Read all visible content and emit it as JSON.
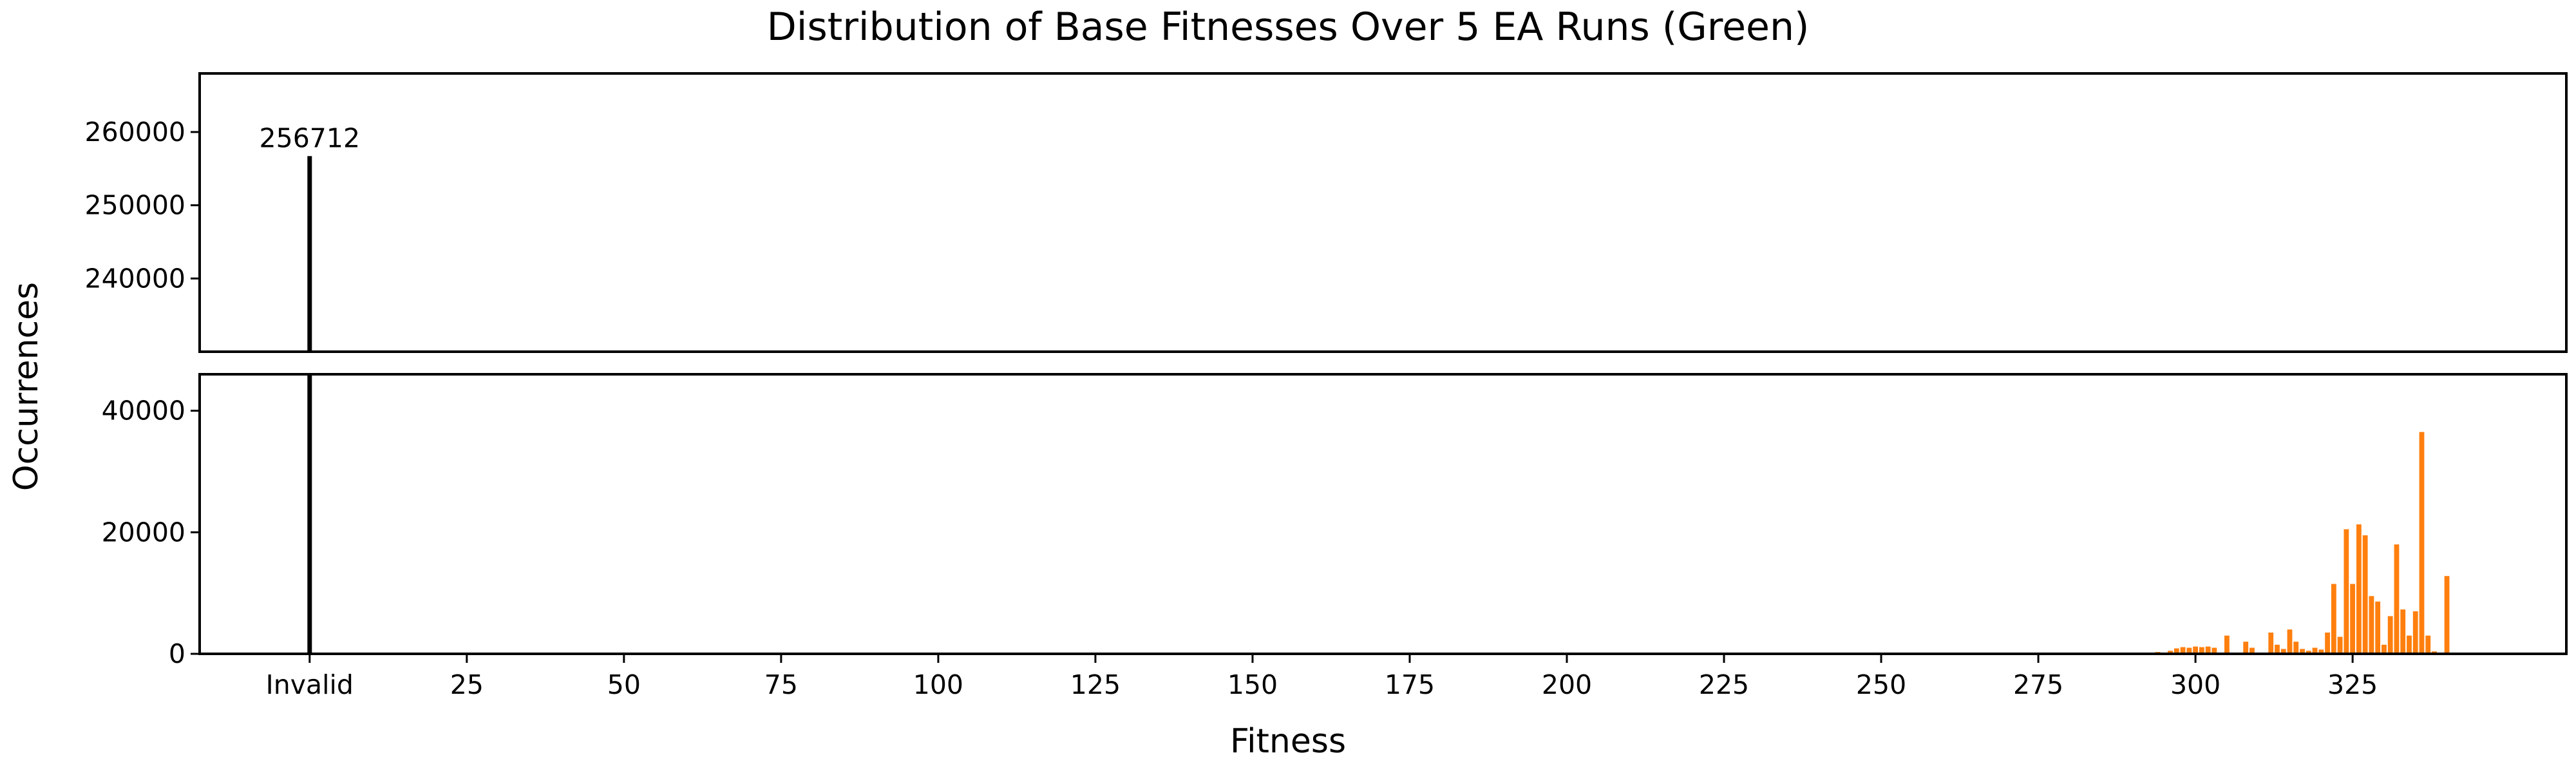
{
  "chart_data": {
    "type": "bar",
    "title": "Distribution of Base Fitnesses Over 5 EA Runs (Green)",
    "xlabel": "Fitness",
    "ylabel": "Occurrences",
    "broken_y_axis": true,
    "panels": [
      {
        "name": "upper",
        "ylim": [
          230000,
          268000
        ],
        "yticks": [
          240000,
          250000,
          260000
        ]
      },
      {
        "name": "lower",
        "ylim": [
          0,
          46000
        ],
        "yticks": [
          0,
          20000,
          40000
        ]
      }
    ],
    "xlim": [
      -17.5,
      359
    ],
    "xticks": [
      {
        "value": 0,
        "label": "Invalid"
      },
      {
        "value": 25,
        "label": "25"
      },
      {
        "value": 50,
        "label": "50"
      },
      {
        "value": 75,
        "label": "75"
      },
      {
        "value": 100,
        "label": "100"
      },
      {
        "value": 125,
        "label": "125"
      },
      {
        "value": 150,
        "label": "150"
      },
      {
        "value": 175,
        "label": "175"
      },
      {
        "value": 200,
        "label": "200"
      },
      {
        "value": 225,
        "label": "225"
      },
      {
        "value": 250,
        "label": "250"
      },
      {
        "value": 275,
        "label": "275"
      },
      {
        "value": 300,
        "label": "300"
      },
      {
        "value": 325,
        "label": "325"
      }
    ],
    "invalid_bar": {
      "x": 0,
      "value": 256712,
      "label": "256712",
      "color": "#000000"
    },
    "valid_color": "#ff7f0e",
    "valid_bars": {
      "x": [
        288,
        290,
        292,
        294,
        296,
        297,
        298,
        299,
        300,
        301,
        302,
        303,
        305,
        308,
        309,
        312,
        313,
        314,
        315,
        316,
        317,
        318,
        319,
        320,
        321,
        322,
        323,
        324,
        325,
        326,
        327,
        328,
        329,
        330,
        331,
        332,
        333,
        334,
        335,
        336,
        337,
        338,
        340
      ],
      "values": [
        100,
        150,
        200,
        300,
        500,
        900,
        1100,
        1000,
        1200,
        1100,
        1200,
        1000,
        3000,
        2000,
        1000,
        3500,
        1500,
        800,
        4000,
        2000,
        800,
        500,
        1000,
        700,
        3500,
        11500,
        2800,
        20500,
        11500,
        21300,
        19500,
        9500,
        8600,
        1500,
        6200,
        18000,
        7300,
        3000,
        7000,
        36500,
        3000,
        400,
        12800
      ]
    }
  }
}
